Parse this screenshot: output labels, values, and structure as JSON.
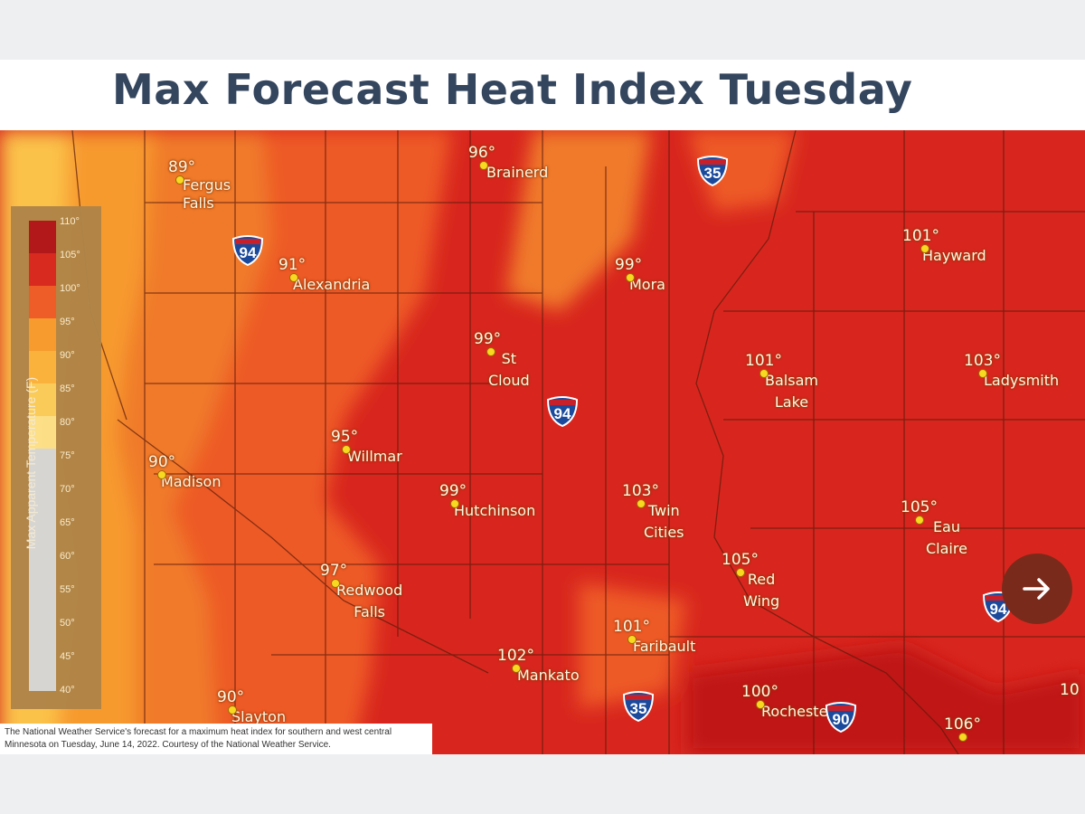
{
  "title": "Max Forecast Heat Index Tuesday",
  "caption": "The National Weather Service's forecast for a maximum heat index for southern and west central Minnesota on Tuesday, June 14, 2022.  Courtesy of the National Weather Service.",
  "legend": {
    "title": "Max Apparent Temperature (F)",
    "ticks": [
      "110°",
      "105°",
      "100°",
      "95°",
      "90°",
      "85°",
      "80°",
      "75°",
      "70°",
      "65°",
      "60°",
      "55°",
      "50°",
      "45°",
      "40°"
    ]
  },
  "cities": [
    {
      "temp": "89°",
      "name": "Fergus\nFalls"
    },
    {
      "temp": "96°",
      "name": "Brainerd"
    },
    {
      "temp": "91°",
      "name": "Alexandria"
    },
    {
      "temp": "99°",
      "name": "Mora"
    },
    {
      "temp": "101°",
      "name": "Hayward"
    },
    {
      "temp": "99°",
      "name": "St\nCloud"
    },
    {
      "temp": "101°",
      "name": "Balsam\nLake"
    },
    {
      "temp": "103°",
      "name": "Ladysmith"
    },
    {
      "temp": "95°",
      "name": "Willmar"
    },
    {
      "temp": "90°",
      "name": "Madison"
    },
    {
      "temp": "99°",
      "name": "Hutchinson"
    },
    {
      "temp": "103°",
      "name": "Twin\nCities"
    },
    {
      "temp": "105°",
      "name": "Eau\nClaire"
    },
    {
      "temp": "97°",
      "name": "Redwood\nFalls"
    },
    {
      "temp": "105°",
      "name": "Red\nWing"
    },
    {
      "temp": "101°",
      "name": "Faribault"
    },
    {
      "temp": "102°",
      "name": "Mankato"
    },
    {
      "temp": "90°",
      "name": "Slayton"
    },
    {
      "temp": "100°",
      "name": "Rochester"
    },
    {
      "temp": "106°",
      "name": ""
    },
    {
      "temp": "10",
      "name": ""
    }
  ],
  "interstates": [
    "94",
    "35",
    "94",
    "94",
    "35",
    "90"
  ],
  "colors": {
    "title": "#34455e",
    "hot": "#d8261e",
    "warm": "#ee5a26",
    "mild": "#f79a2e",
    "cool": "#fbc24a"
  }
}
